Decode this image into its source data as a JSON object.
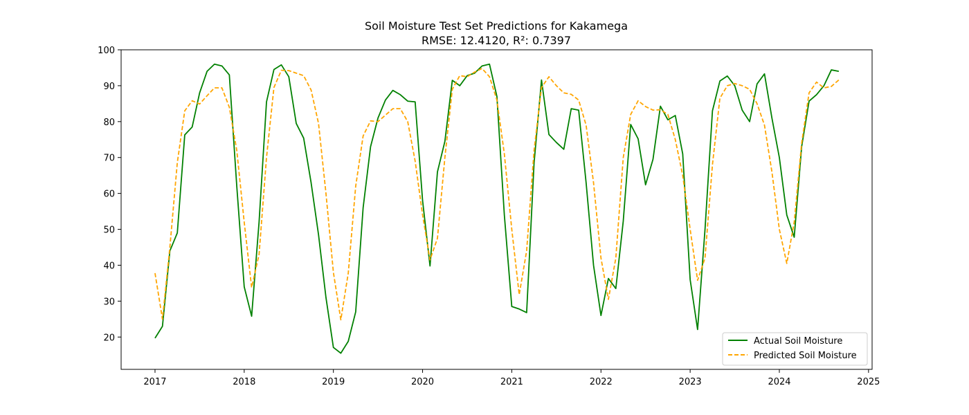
{
  "chart_data": {
    "type": "line",
    "title": "Soil Moisture Test Set Predictions for Kakamega",
    "subtitle": "RMSE: 12.4120, R²: 0.7397",
    "xlabel": "",
    "ylabel": "",
    "xlim": [
      2016.62,
      2025.04
    ],
    "ylim": [
      11.0,
      100.0
    ],
    "xticks": [
      2017,
      2018,
      2019,
      2020,
      2021,
      2022,
      2023,
      2024,
      2025
    ],
    "xtick_labels": [
      "2017",
      "2018",
      "2019",
      "2020",
      "2021",
      "2022",
      "2023",
      "2024",
      "2025"
    ],
    "yticks": [
      20,
      30,
      40,
      50,
      60,
      70,
      80,
      90,
      100
    ],
    "ytick_labels": [
      "20",
      "30",
      "40",
      "50",
      "60",
      "70",
      "80",
      "90",
      "100"
    ],
    "grid": false,
    "legend_position": "lower-right",
    "x_start": 2017.0,
    "x_step": 0.08333333,
    "series": [
      {
        "name": "Actual Soil Moisture",
        "color": "#008000",
        "style": "solid",
        "values": [
          19.7,
          23.0,
          44.0,
          49.0,
          76.3,
          78.5,
          88.0,
          94.0,
          96.0,
          95.5,
          93.0,
          62.0,
          34.0,
          25.8,
          52.0,
          85.5,
          94.5,
          95.8,
          92.5,
          79.5,
          75.4,
          63.0,
          48.5,
          31.0,
          17.1,
          15.5,
          18.8,
          27.0,
          56.0,
          73.0,
          81.0,
          86.0,
          88.7,
          87.5,
          85.7,
          85.5,
          58.0,
          39.8,
          66.0,
          74.5,
          91.5,
          90.0,
          92.8,
          93.5,
          95.5,
          96.0,
          87.0,
          54.0,
          28.5,
          27.8,
          26.8,
          68.5,
          91.6,
          76.4,
          74.2,
          72.3,
          83.6,
          83.2,
          63.0,
          40.0,
          26.0,
          36.3,
          33.5,
          52.3,
          79.2,
          75.2,
          62.4,
          69.5,
          84.3,
          80.5,
          81.7,
          71.0,
          36.0,
          22.1,
          50.0,
          83.0,
          91.3,
          92.7,
          90.0,
          83.2,
          80.0,
          90.5,
          93.3,
          81.0,
          70.0,
          54.0,
          47.8,
          73.0,
          85.7,
          87.5,
          90.0,
          94.4,
          94.0
        ]
      },
      {
        "name": "Predicted Soil Moisture",
        "color": "#ffa500",
        "style": "dashed",
        "values": [
          37.8,
          25.0,
          45.0,
          68.6,
          83.0,
          85.8,
          84.9,
          87.2,
          89.4,
          89.4,
          84.0,
          72.0,
          52.0,
          33.8,
          43.0,
          70.0,
          89.5,
          94.3,
          94.2,
          93.5,
          92.8,
          88.8,
          79.5,
          60.0,
          38.0,
          24.8,
          37.8,
          62.0,
          76.0,
          80.2,
          80.0,
          81.8,
          83.6,
          83.6,
          80.0,
          69.0,
          54.0,
          41.5,
          47.5,
          70.0,
          89.0,
          92.8,
          92.5,
          93.8,
          94.8,
          92.5,
          86.0,
          71.0,
          50.0,
          31.8,
          44.0,
          72.0,
          89.5,
          92.5,
          90.0,
          88.0,
          87.6,
          86.0,
          79.0,
          63.0,
          42.0,
          30.5,
          42.0,
          70.0,
          82.0,
          85.8,
          84.2,
          83.2,
          83.3,
          82.0,
          75.0,
          65.0,
          50.0,
          35.8,
          42.0,
          68.0,
          86.5,
          90.0,
          90.6,
          90.0,
          89.0,
          85.0,
          79.0,
          66.0,
          50.0,
          40.5,
          52.0,
          74.0,
          88.0,
          91.0,
          89.4,
          89.8,
          91.6
        ]
      }
    ]
  }
}
